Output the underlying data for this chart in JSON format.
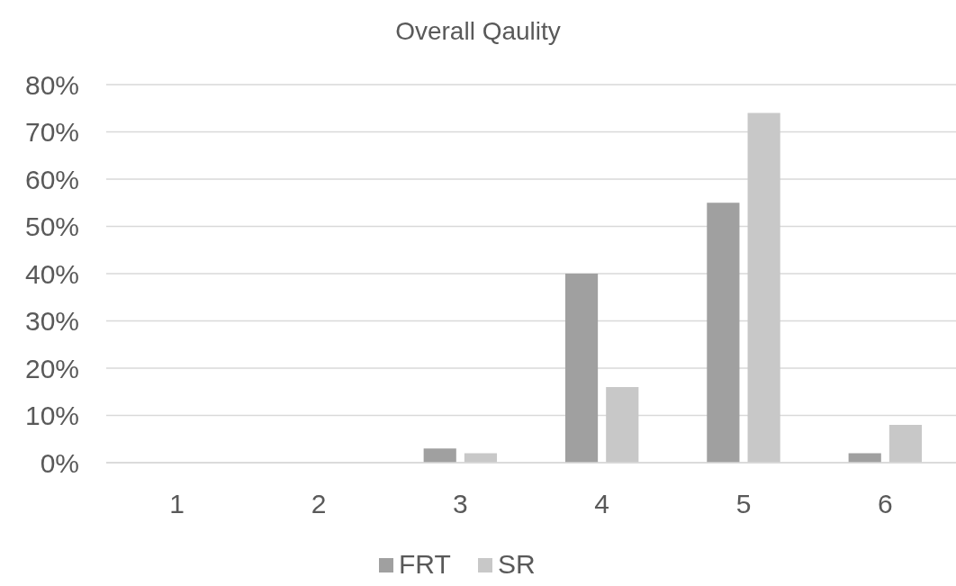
{
  "chart_data": {
    "type": "bar",
    "title": "Overall Qaulity",
    "categories": [
      "1",
      "2",
      "3",
      "4",
      "5",
      "6"
    ],
    "series": [
      {
        "name": "FRT",
        "color": "#a0a0a0",
        "values": [
          0,
          0,
          3,
          40,
          55,
          2
        ]
      },
      {
        "name": "SR",
        "color": "#c8c8c8",
        "values": [
          0,
          0,
          2,
          16,
          74,
          8
        ]
      }
    ],
    "ylim": [
      0,
      80
    ],
    "yticks": [
      {
        "value": 0,
        "label": "0%"
      },
      {
        "value": 10,
        "label": "10%"
      },
      {
        "value": 20,
        "label": "20%"
      },
      {
        "value": 30,
        "label": "30%"
      },
      {
        "value": 40,
        "label": "40%"
      },
      {
        "value": 50,
        "label": "50%"
      },
      {
        "value": 60,
        "label": "60%"
      },
      {
        "value": 70,
        "label": "70%"
      },
      {
        "value": 80,
        "label": "80%"
      }
    ],
    "grid": "y",
    "legend": "bottom"
  }
}
